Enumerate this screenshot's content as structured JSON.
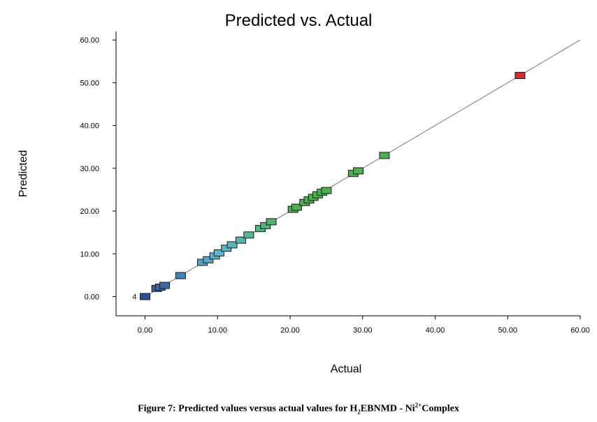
{
  "chart_data": {
    "type": "scatter",
    "title": "Predicted vs. Actual",
    "xlabel": "Actual",
    "ylabel": "Predicted",
    "xlim": [
      -4,
      60
    ],
    "ylim": [
      -4.5,
      62
    ],
    "x_ticks": [
      "0.00",
      "10.00",
      "20.00",
      "30.00",
      "40.00",
      "50.00",
      "60.00"
    ],
    "y_ticks": [
      "0.00",
      "10.00",
      "20.00",
      "30.00",
      "40.00",
      "50.00",
      "60.00"
    ],
    "reference_line": {
      "from": [
        0,
        0
      ],
      "to": [
        60,
        60
      ]
    },
    "point_annotation": {
      "text": "4",
      "x": 0,
      "y": 0
    },
    "colors": {
      "low": "#2e4f9a",
      "mid": "#5bb8d8",
      "high": "#4caf50",
      "max": "#d32f2f"
    },
    "points": [
      {
        "x": 0,
        "y": 0
      },
      {
        "x": 1.6,
        "y": 1.9
      },
      {
        "x": 2.1,
        "y": 2.2
      },
      {
        "x": 2.7,
        "y": 2.6
      },
      {
        "x": 4.9,
        "y": 4.9
      },
      {
        "x": 7.9,
        "y": 8.0
      },
      {
        "x": 8.7,
        "y": 8.6
      },
      {
        "x": 9.6,
        "y": 9.5
      },
      {
        "x": 10.2,
        "y": 10.2
      },
      {
        "x": 11.2,
        "y": 11.3
      },
      {
        "x": 12.0,
        "y": 12.1
      },
      {
        "x": 13.2,
        "y": 13.2
      },
      {
        "x": 14.3,
        "y": 14.4
      },
      {
        "x": 15.9,
        "y": 15.9
      },
      {
        "x": 16.6,
        "y": 16.6
      },
      {
        "x": 17.4,
        "y": 17.5
      },
      {
        "x": 20.4,
        "y": 20.4
      },
      {
        "x": 20.9,
        "y": 20.9
      },
      {
        "x": 22.0,
        "y": 22.0
      },
      {
        "x": 22.6,
        "y": 22.6
      },
      {
        "x": 23.2,
        "y": 23.2
      },
      {
        "x": 23.8,
        "y": 23.8
      },
      {
        "x": 24.4,
        "y": 24.4
      },
      {
        "x": 25.0,
        "y": 24.8
      },
      {
        "x": 28.7,
        "y": 28.8
      },
      {
        "x": 29.4,
        "y": 29.4
      },
      {
        "x": 33.0,
        "y": 33.0
      },
      {
        "x": 51.7,
        "y": 51.7
      }
    ]
  },
  "caption": {
    "prefix": "Figure 7: Predicted values versus actual values for H",
    "sub": "2",
    "mid": "EBNMD - Ni",
    "sup": "2+",
    "suffix": "Complex"
  }
}
